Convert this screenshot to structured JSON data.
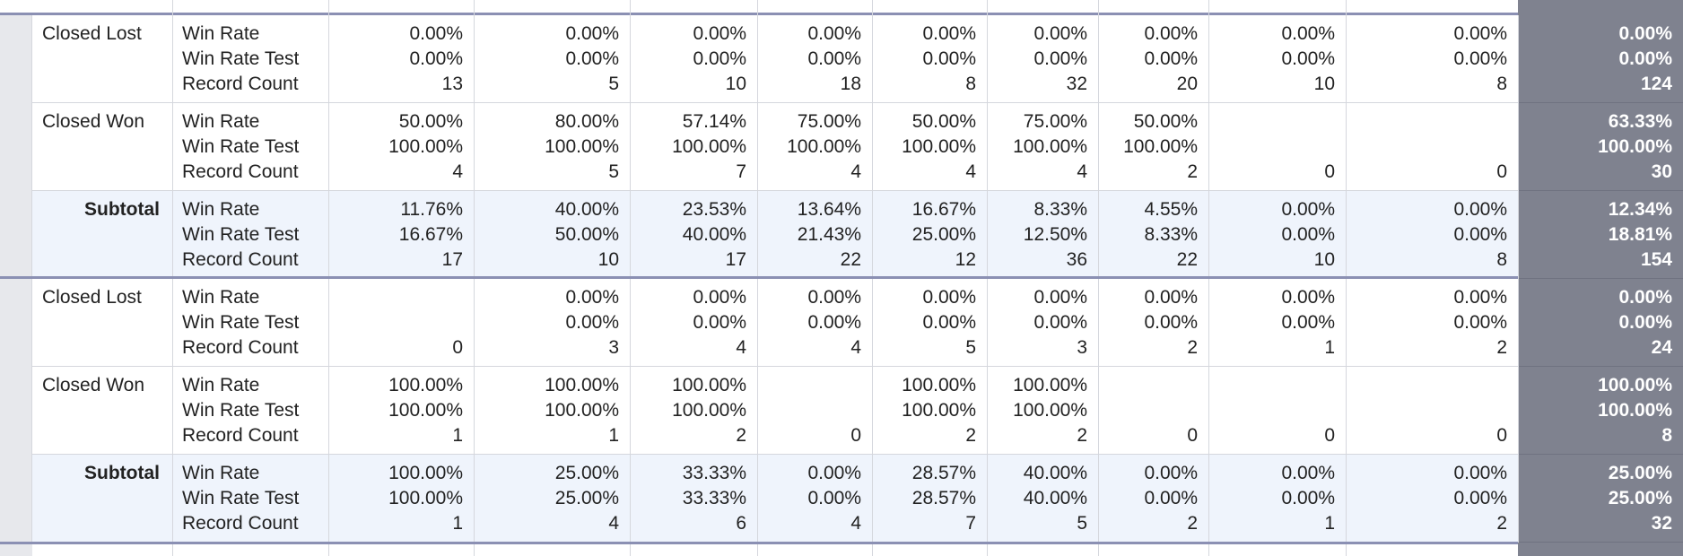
{
  "metrics": [
    "Win Rate",
    "Win Rate Test",
    "Record Count"
  ],
  "groups": [
    {
      "rows": [
        {
          "stage": "Closed Lost",
          "cells": [
            [
              "0.00%",
              "0.00%",
              "13"
            ],
            [
              "0.00%",
              "0.00%",
              "5"
            ],
            [
              "0.00%",
              "0.00%",
              "10"
            ],
            [
              "0.00%",
              "0.00%",
              "18"
            ],
            [
              "0.00%",
              "0.00%",
              "8"
            ],
            [
              "0.00%",
              "0.00%",
              "32"
            ],
            [
              "0.00%",
              "0.00%",
              "20"
            ],
            [
              "0.00%",
              "0.00%",
              "10"
            ],
            [
              "0.00%",
              "0.00%",
              "8"
            ]
          ],
          "total": [
            "0.00%",
            "0.00%",
            "124"
          ]
        },
        {
          "stage": "Closed Won",
          "cells": [
            [
              "50.00%",
              "100.00%",
              "4"
            ],
            [
              "80.00%",
              "100.00%",
              "5"
            ],
            [
              "57.14%",
              "100.00%",
              "7"
            ],
            [
              "75.00%",
              "100.00%",
              "4"
            ],
            [
              "50.00%",
              "100.00%",
              "4"
            ],
            [
              "75.00%",
              "100.00%",
              "4"
            ],
            [
              "50.00%",
              "100.00%",
              "2"
            ],
            [
              null,
              null,
              "0"
            ],
            [
              null,
              null,
              "0"
            ]
          ],
          "total": [
            "63.33%",
            "100.00%",
            "30"
          ]
        },
        {
          "stage": "Subtotal",
          "cells": [
            [
              "11.76%",
              "16.67%",
              "17"
            ],
            [
              "40.00%",
              "50.00%",
              "10"
            ],
            [
              "23.53%",
              "40.00%",
              "17"
            ],
            [
              "13.64%",
              "21.43%",
              "22"
            ],
            [
              "16.67%",
              "25.00%",
              "12"
            ],
            [
              "8.33%",
              "12.50%",
              "36"
            ],
            [
              "4.55%",
              "8.33%",
              "22"
            ],
            [
              "0.00%",
              "0.00%",
              "10"
            ],
            [
              "0.00%",
              "0.00%",
              "8"
            ]
          ],
          "total": [
            "12.34%",
            "18.81%",
            "154"
          ]
        }
      ]
    },
    {
      "rows": [
        {
          "stage": "Closed Lost",
          "cells": [
            [
              null,
              null,
              "0"
            ],
            [
              "0.00%",
              "0.00%",
              "3"
            ],
            [
              "0.00%",
              "0.00%",
              "4"
            ],
            [
              "0.00%",
              "0.00%",
              "4"
            ],
            [
              "0.00%",
              "0.00%",
              "5"
            ],
            [
              "0.00%",
              "0.00%",
              "3"
            ],
            [
              "0.00%",
              "0.00%",
              "2"
            ],
            [
              "0.00%",
              "0.00%",
              "1"
            ],
            [
              "0.00%",
              "0.00%",
              "2"
            ]
          ],
          "total": [
            "0.00%",
            "0.00%",
            "24"
          ]
        },
        {
          "stage": "Closed Won",
          "cells": [
            [
              "100.00%",
              "100.00%",
              "1"
            ],
            [
              "100.00%",
              "100.00%",
              "1"
            ],
            [
              "100.00%",
              "100.00%",
              "2"
            ],
            [
              null,
              null,
              "0"
            ],
            [
              "100.00%",
              "100.00%",
              "2"
            ],
            [
              "100.00%",
              "100.00%",
              "2"
            ],
            [
              null,
              null,
              "0"
            ],
            [
              null,
              null,
              "0"
            ],
            [
              null,
              null,
              "0"
            ]
          ],
          "total": [
            "100.00%",
            "100.00%",
            "8"
          ]
        },
        {
          "stage": "Subtotal",
          "cells": [
            [
              "100.00%",
              "100.00%",
              "1"
            ],
            [
              "25.00%",
              "25.00%",
              "4"
            ],
            [
              "33.33%",
              "33.33%",
              "6"
            ],
            [
              "0.00%",
              "0.00%",
              "4"
            ],
            [
              "28.57%",
              "28.57%",
              "7"
            ],
            [
              "40.00%",
              "40.00%",
              "5"
            ],
            [
              "0.00%",
              "0.00%",
              "2"
            ],
            [
              "0.00%",
              "0.00%",
              "1"
            ],
            [
              "0.00%",
              "0.00%",
              "2"
            ]
          ],
          "total": [
            "25.00%",
            "25.00%",
            "32"
          ]
        }
      ]
    }
  ]
}
